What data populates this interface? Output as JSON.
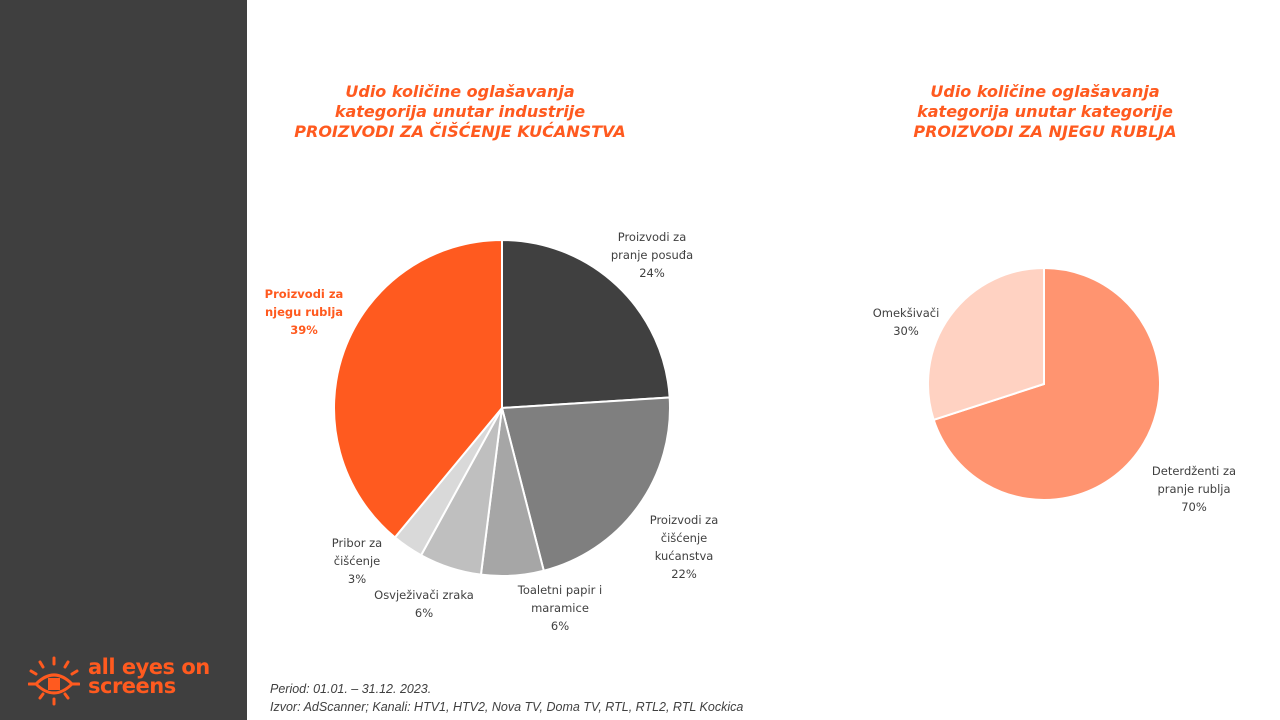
{
  "logo": {
    "line1": "all eyes on",
    "line2": "screens"
  },
  "footer": {
    "period": "Period: 01.01. – 31.12. 2023.",
    "source": "Izvor: AdScanner; Kanali: HTV1, HTV2, Nova TV, Doma TV, RTL, RTL2, RTL Kockica"
  },
  "chart_data": [
    {
      "type": "pie",
      "title_lines": [
        "Udio količine oglašavanja",
        "kategorija unutar industrije",
        "PROIZVODI ZA ČIŠĆENJE KUĆANSTVA"
      ],
      "slices": [
        {
          "name_lines": [
            "Proizvodi za",
            "pranje posuđa"
          ],
          "value": 24,
          "label": "24%",
          "color": "#404040"
        },
        {
          "name_lines": [
            "Proizvodi za",
            "čišćenje",
            "kućanstva"
          ],
          "value": 22,
          "label": "22%",
          "color": "#7f7f7f"
        },
        {
          "name_lines": [
            "Toaletni papir i",
            "maramice"
          ],
          "value": 6,
          "label": "6%",
          "color": "#a6a6a6"
        },
        {
          "name_lines": [
            "Osvježivači zraka"
          ],
          "value": 6,
          "label": "6%",
          "color": "#bfbfbf"
        },
        {
          "name_lines": [
            "Pribor za",
            "čišćenje"
          ],
          "value": 3,
          "label": "3%",
          "color": "#d9d9d9"
        },
        {
          "name_lines": [
            "Proizvodi za",
            "njegu rublja"
          ],
          "value": 39,
          "label": "39%",
          "color": "#ff5a1f",
          "highlight": true
        }
      ]
    },
    {
      "type": "pie",
      "title_lines": [
        "Udio količine oglašavanja",
        "kategorija unutar kategorije",
        "PROIZVODI ZA NJEGU RUBLJA"
      ],
      "slices": [
        {
          "name_lines": [
            "Deterdženti za",
            "pranje rublja"
          ],
          "value": 70,
          "label": "70%",
          "color": "#ff9470"
        },
        {
          "name_lines": [
            "Omekšivači"
          ],
          "value": 30,
          "label": "30%",
          "color": "#ffd2c2"
        }
      ]
    }
  ],
  "colors": {
    "accent": "#ff5a1f",
    "sidebar": "#3f3f3f"
  }
}
